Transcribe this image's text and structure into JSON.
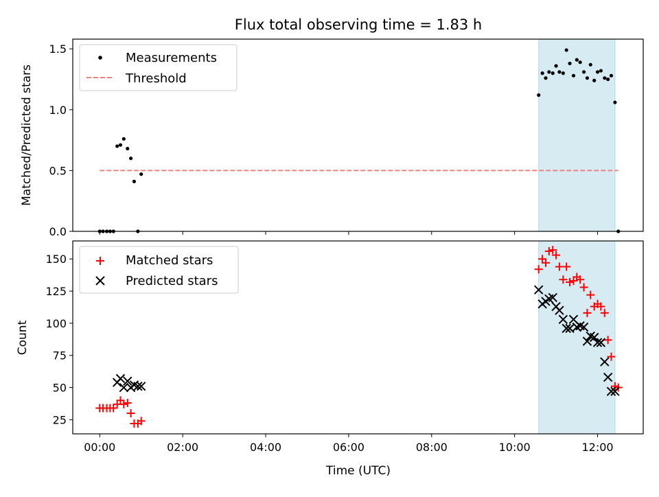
{
  "title": "Flux total observing time = 1.83 h",
  "colors": {
    "measurements": "#000000",
    "threshold": "#f08080",
    "matched": "#ff0000",
    "predicted": "#000000",
    "span": "#add8e6"
  },
  "chart_data": [
    {
      "type": "scatter",
      "ylabel": "Matched/Predicted stars",
      "xlim": [
        -0.65,
        13.1
      ],
      "ylim": [
        0,
        1.58
      ],
      "xticks": [
        0,
        2,
        4,
        6,
        8,
        10,
        12
      ],
      "yticks": [
        0.0,
        0.5,
        1.0,
        1.5
      ],
      "ytick_labels": [
        "0.0",
        "0.5",
        "1.0",
        "1.5"
      ],
      "span": [
        10.58,
        12.42
      ],
      "legend": {
        "position": "upper-left",
        "measurements_label": "Measurements",
        "threshold_label": "Threshold"
      },
      "threshold": {
        "value": 0.5,
        "x": [
          0.0,
          12.5
        ]
      },
      "series": [
        {
          "name": "Measurements",
          "x": [
            0.0,
            0.08,
            0.17,
            0.25,
            0.33,
            0.42,
            0.5,
            0.58,
            0.67,
            0.75,
            0.83,
            0.92,
            1.0,
            10.58,
            10.67,
            10.75,
            10.83,
            10.92,
            11.0,
            11.08,
            11.17,
            11.25,
            11.33,
            11.42,
            11.5,
            11.58,
            11.67,
            11.75,
            11.83,
            11.92,
            12.0,
            12.08,
            12.17,
            12.25,
            12.33,
            12.42,
            12.5
          ],
          "y": [
            0.0,
            0.0,
            0.0,
            0.0,
            0.0,
            0.7,
            0.71,
            0.76,
            0.68,
            0.6,
            0.41,
            0.0,
            0.47,
            1.12,
            1.3,
            1.26,
            1.31,
            1.3,
            1.36,
            1.31,
            1.3,
            1.49,
            1.38,
            1.28,
            1.41,
            1.39,
            1.31,
            1.26,
            1.37,
            1.24,
            1.31,
            1.32,
            1.26,
            1.25,
            1.28,
            1.06,
            0.0
          ]
        }
      ]
    },
    {
      "type": "scatter",
      "xlabel": "Time (UTC)",
      "ylabel": "Count",
      "xlim": [
        -0.65,
        13.1
      ],
      "ylim": [
        14,
        164
      ],
      "xticks": [
        0,
        2,
        4,
        6,
        8,
        10,
        12
      ],
      "xtick_labels": [
        "00:00",
        "02:00",
        "04:00",
        "06:00",
        "08:00",
        "10:00",
        "12:00"
      ],
      "yticks": [
        25,
        50,
        75,
        100,
        125,
        150
      ],
      "ytick_labels": [
        "25",
        "50",
        "75",
        "100",
        "125",
        "150"
      ],
      "span": [
        10.58,
        12.42
      ],
      "legend": {
        "position": "upper-left",
        "matched_label": "Matched stars",
        "predicted_label": "Predicted stars"
      },
      "series": [
        {
          "name": "Matched stars",
          "x": [
            0.0,
            0.08,
            0.17,
            0.25,
            0.33,
            0.42,
            0.5,
            0.58,
            0.67,
            0.75,
            0.83,
            0.92,
            1.0,
            10.58,
            10.67,
            10.75,
            10.83,
            10.92,
            11.0,
            11.08,
            11.17,
            11.25,
            11.33,
            11.42,
            11.5,
            11.58,
            11.67,
            11.75,
            11.83,
            11.92,
            12.0,
            12.08,
            12.17,
            12.25,
            12.33,
            12.42,
            12.5
          ],
          "y": [
            34,
            34,
            34,
            34,
            34,
            37,
            40,
            37,
            38,
            30,
            22,
            22,
            24,
            142,
            150,
            147,
            156,
            157,
            153,
            144,
            134,
            144,
            132,
            133,
            136,
            134,
            128,
            108,
            122,
            113,
            115,
            113,
            108,
            87,
            74,
            51,
            50
          ]
        },
        {
          "name": "Predicted stars",
          "x": [
            0.42,
            0.5,
            0.58,
            0.67,
            0.75,
            0.83,
            0.92,
            1.0,
            10.58,
            10.67,
            10.75,
            10.83,
            10.92,
            11.0,
            11.08,
            11.17,
            11.25,
            11.33,
            11.42,
            11.5,
            11.58,
            11.67,
            11.75,
            11.83,
            11.92,
            12.0,
            12.08,
            12.17,
            12.25,
            12.33,
            12.42
          ],
          "y": [
            54,
            57,
            50,
            55,
            50,
            52,
            51,
            51,
            126,
            115,
            117,
            119,
            120,
            113,
            110,
            103,
            96,
            96,
            103,
            97,
            98,
            97,
            86,
            90,
            89,
            85,
            85,
            70,
            58,
            47,
            47
          ]
        }
      ]
    }
  ]
}
